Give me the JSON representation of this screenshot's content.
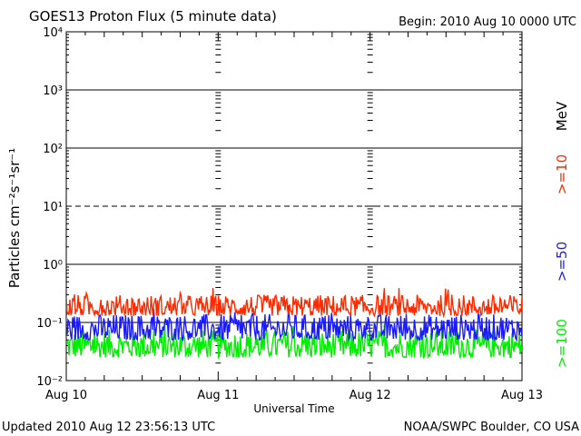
{
  "chart_data": {
    "type": "line",
    "title": "GOES13 Proton Flux (5 minute data)",
    "begin": "Begin: 2010 Aug 10 0000 UTC",
    "xlabel": "Universal Time",
    "ylabel": "Particles cm⁻²s⁻¹sr⁻¹",
    "x_tick_labels": [
      "Aug 10",
      "Aug 11",
      "Aug 12",
      "Aug 13"
    ],
    "y_tick_labels": [
      "10⁻²",
      "10⁻¹",
      "10⁰",
      "10¹",
      "10²",
      "10³",
      "10⁴"
    ],
    "y_scale": "log",
    "ylim": [
      0.01,
      10000
    ],
    "x_range_days": [
      0,
      3
    ],
    "series": [
      {
        "name": ">=10",
        "color": "#ff2a00",
        "typical_range": [
          0.13,
          0.3
        ]
      },
      {
        "name": ">=50",
        "color": "#1a1aff",
        "typical_range": [
          0.05,
          0.14
        ]
      },
      {
        "name": ">=100",
        "color": "#00ee00",
        "typical_range": [
          0.025,
          0.075
        ]
      }
    ],
    "unit_label": "MeV",
    "threshold_lines": [
      1,
      100,
      1000,
      0.1
    ],
    "dashed_line": 10
  },
  "footer": {
    "updated": "Updated 2010 Aug 12 23:56:13 UTC",
    "source": "NOAA/SWPC Boulder, CO USA"
  }
}
